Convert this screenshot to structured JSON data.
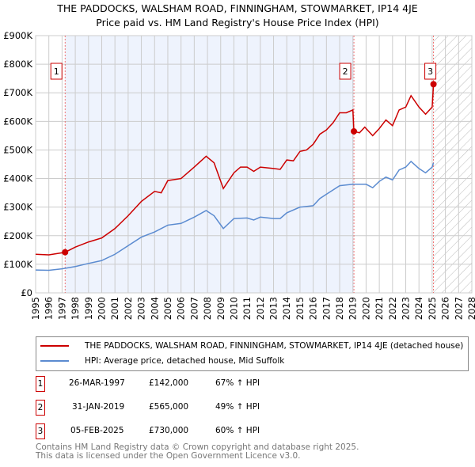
{
  "title": "THE PADDOCKS, WALSHAM ROAD, FINNINGHAM, STOWMARKET, IP14 4JE",
  "subtitle": "Price paid vs. HM Land Registry's House Price Index (HPI)",
  "colors": {
    "property": "#cc0000",
    "hpi": "#5b8bd0",
    "shade": "#eef3fd"
  },
  "chart_data": {
    "type": "line",
    "xlim": [
      1995,
      2028
    ],
    "ylim": [
      0,
      900000
    ],
    "xticks": [
      "1995",
      "1996",
      "1997",
      "1998",
      "1999",
      "2000",
      "2001",
      "2002",
      "2003",
      "2004",
      "2005",
      "2006",
      "2007",
      "2008",
      "2009",
      "2010",
      "2011",
      "2012",
      "2013",
      "2014",
      "2015",
      "2016",
      "2017",
      "2018",
      "2019",
      "2020",
      "2021",
      "2022",
      "2023",
      "2024",
      "2025",
      "2026",
      "2027",
      "2028"
    ],
    "yticks": [
      {
        "v": 0,
        "l": "£0"
      },
      {
        "v": 100000,
        "l": "£100K"
      },
      {
        "v": 200000,
        "l": "£200K"
      },
      {
        "v": 300000,
        "l": "£300K"
      },
      {
        "v": 400000,
        "l": "£400K"
      },
      {
        "v": 500000,
        "l": "£500K"
      },
      {
        "v": 600000,
        "l": "£600K"
      },
      {
        "v": 700000,
        "l": "£700K"
      },
      {
        "v": 800000,
        "l": "£800K"
      },
      {
        "v": 900000,
        "l": "£900K"
      }
    ],
    "series": [
      {
        "name": "THE PADDOCKS, WALSHAM ROAD, FINNINGHAM, STOWMARKET, IP14 4JE (detached house)",
        "color": "#cc0000",
        "x": [
          1995,
          1996,
          1997.23,
          1998,
          1999,
          2000,
          2001,
          2002,
          2003,
          2004,
          2004.5,
          2005,
          2006,
          2007,
          2007.9,
          2008.5,
          2009.2,
          2010,
          2010.5,
          2011,
          2011.5,
          2012,
          2013,
          2013.5,
          2014,
          2014.5,
          2015,
          2015.5,
          2016,
          2016.5,
          2017,
          2017.5,
          2018,
          2018.5,
          2019,
          2019.08,
          2019.5,
          2019.9,
          2020.5,
          2021,
          2021.5,
          2022,
          2022.5,
          2023,
          2023.4,
          2024,
          2024.5,
          2025,
          2025.1
        ],
        "y": [
          135000,
          133000,
          142000,
          160000,
          178000,
          192000,
          225000,
          270000,
          320000,
          355000,
          350000,
          393000,
          400000,
          440000,
          478000,
          455000,
          365000,
          420000,
          440000,
          440000,
          425000,
          440000,
          435000,
          432000,
          465000,
          462000,
          495000,
          500000,
          520000,
          555000,
          570000,
          595000,
          630000,
          630000,
          640000,
          565000,
          560000,
          580000,
          550000,
          575000,
          605000,
          585000,
          640000,
          650000,
          690000,
          650000,
          625000,
          650000,
          730000
        ]
      },
      {
        "name": "HPI: Average price, detached house, Mid Suffolk",
        "color": "#5b8bd0",
        "x": [
          1995,
          1996,
          1997,
          1998,
          1999,
          2000,
          2001,
          2002,
          2003,
          2004,
          2005,
          2006,
          2007,
          2007.9,
          2008.5,
          2009.2,
          2010,
          2011,
          2011.5,
          2012,
          2013,
          2013.5,
          2014,
          2015,
          2016,
          2016.5,
          2017,
          2017.5,
          2018,
          2019,
          2020,
          2020.5,
          2021,
          2021.5,
          2022,
          2022.5,
          2023,
          2023.4,
          2024,
          2024.5,
          2025,
          2025.1
        ],
        "y": [
          80000,
          79000,
          84000,
          92000,
          103000,
          113000,
          135000,
          165000,
          195000,
          213000,
          237000,
          243000,
          265000,
          288000,
          270000,
          225000,
          260000,
          262000,
          255000,
          265000,
          260000,
          260000,
          280000,
          300000,
          305000,
          330000,
          345000,
          360000,
          375000,
          380000,
          380000,
          368000,
          390000,
          405000,
          395000,
          430000,
          440000,
          460000,
          435000,
          420000,
          440000,
          455000
        ]
      }
    ],
    "sales": [
      {
        "label": "1",
        "x": 1997.23,
        "y": 142000
      },
      {
        "label": "2",
        "x": 2019.08,
        "y": 565000
      },
      {
        "label": "3",
        "x": 2025.1,
        "y": 730000
      }
    ]
  },
  "legend": {
    "property": "THE PADDOCKS, WALSHAM ROAD, FINNINGHAM, STOWMARKET, IP14 4JE (detached house)",
    "hpi": "HPI: Average price, detached house, Mid Suffolk"
  },
  "transactions": [
    {
      "num": "1",
      "date": "26-MAR-1997",
      "price": "£142,000",
      "hpi": "67% ↑ HPI"
    },
    {
      "num": "2",
      "date": "31-JAN-2019",
      "price": "£565,000",
      "hpi": "49% ↑ HPI"
    },
    {
      "num": "3",
      "date": "05-FEB-2025",
      "price": "£730,000",
      "hpi": "60% ↑ HPI"
    }
  ],
  "footer": [
    "Contains HM Land Registry data © Crown copyright and database right 2025.",
    "This data is licensed under the Open Government Licence v3.0."
  ]
}
